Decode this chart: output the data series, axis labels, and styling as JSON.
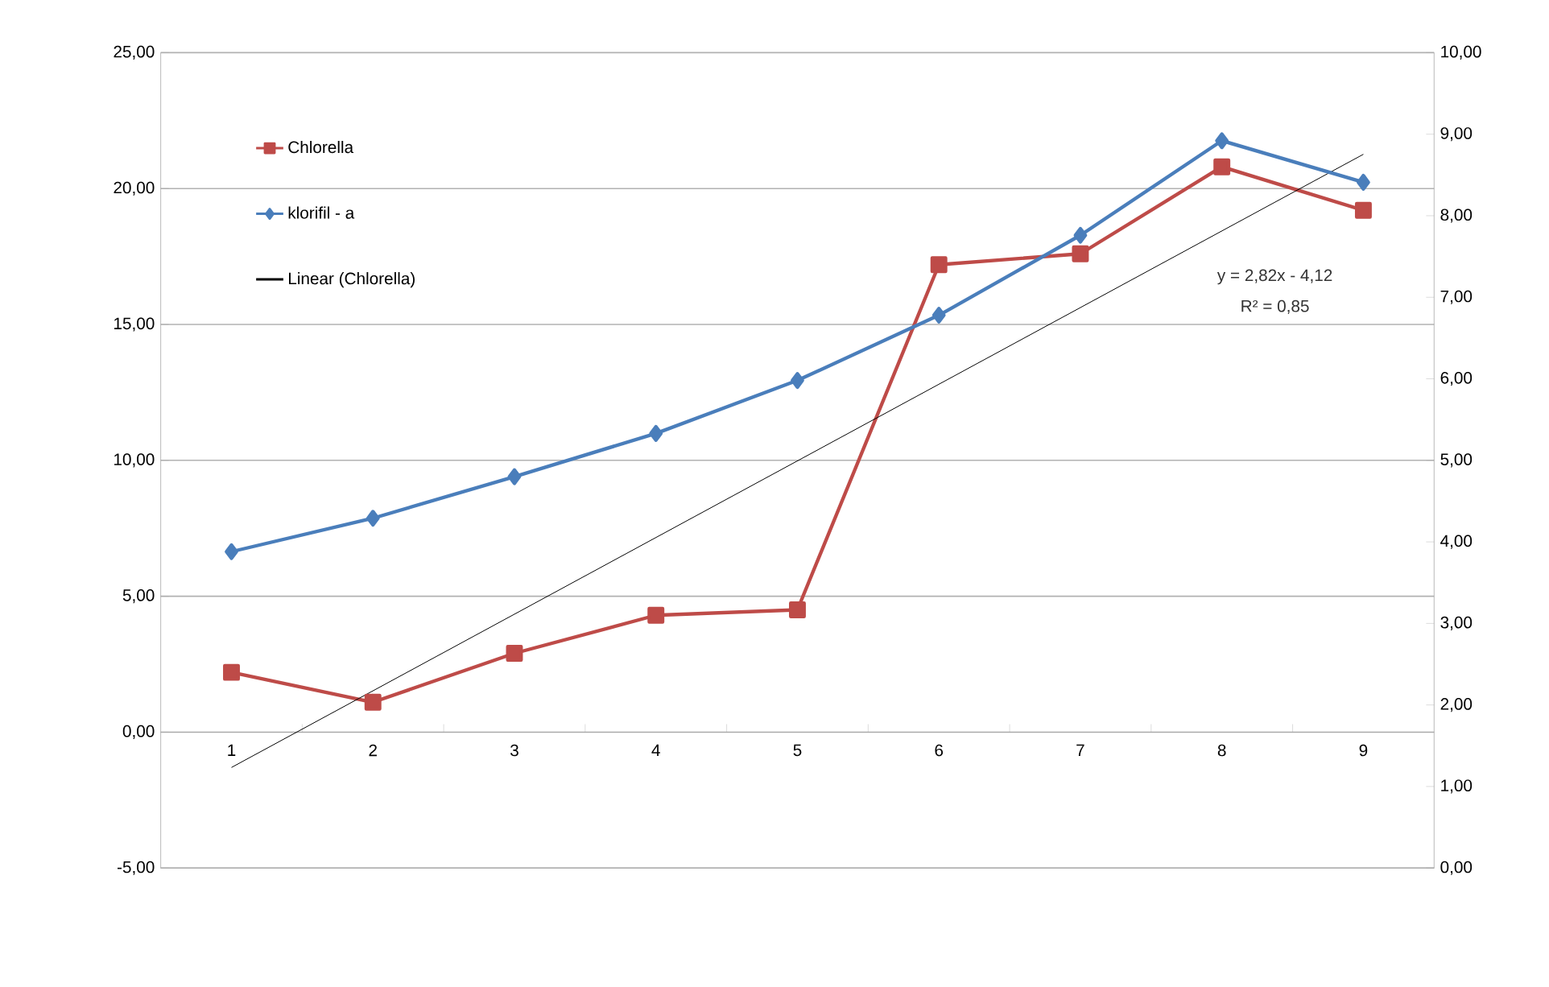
{
  "chart_data": {
    "type": "line",
    "x": [
      1,
      2,
      3,
      4,
      5,
      6,
      7,
      8,
      9
    ],
    "xlim": [
      0.5,
      9.5
    ],
    "xticks": [
      1,
      2,
      3,
      4,
      5,
      6,
      7,
      8,
      9
    ],
    "ylim": [
      -5,
      25
    ],
    "yticks": [
      {
        "value": -5,
        "label": "-5,00"
      },
      {
        "value": 0,
        "label": "0,00"
      },
      {
        "value": 5,
        "label": "5,00"
      },
      {
        "value": 10,
        "label": "10,00"
      },
      {
        "value": 15,
        "label": "15,00"
      },
      {
        "value": 20,
        "label": "20,00"
      },
      {
        "value": 25,
        "label": "25,00"
      }
    ],
    "y2lim": [
      0,
      10
    ],
    "y2ticks": [
      {
        "value": 0,
        "label": "0,00"
      },
      {
        "value": 1,
        "label": "1,00"
      },
      {
        "value": 2,
        "label": "2,00"
      },
      {
        "value": 3,
        "label": "3,00"
      },
      {
        "value": 4,
        "label": "4,00"
      },
      {
        "value": 5,
        "label": "5,00"
      },
      {
        "value": 6,
        "label": "6,00"
      },
      {
        "value": 7,
        "label": "7,00"
      },
      {
        "value": 8,
        "label": "8,00"
      },
      {
        "value": 9,
        "label": "9,00"
      },
      {
        "value": 10,
        "label": "10,00"
      }
    ],
    "series": [
      {
        "name": "Chlorella",
        "color": "#be4b48",
        "marker": "square",
        "values": [
          2.2,
          1.1,
          2.9,
          4.3,
          4.5,
          17.2,
          17.6,
          20.8,
          19.2
        ]
      },
      {
        "name": "klorifil - a",
        "color": "#4a7ebb",
        "marker": "diamond",
        "axis": "y2",
        "values": [
          3.88,
          4.29,
          4.8,
          5.33,
          5.98,
          6.78,
          7.76,
          8.92,
          8.41
        ]
      },
      {
        "name": "Linear (Chlorella)",
        "type": "line",
        "color": "#000000",
        "marker": "none",
        "x": [
          1,
          9
        ],
        "values": [
          -1.3,
          21.26
        ]
      }
    ],
    "annotations": [
      "y = 2,82x - 4,12",
      "R² = 0,85"
    ],
    "grid": "y",
    "legend": "top left"
  }
}
